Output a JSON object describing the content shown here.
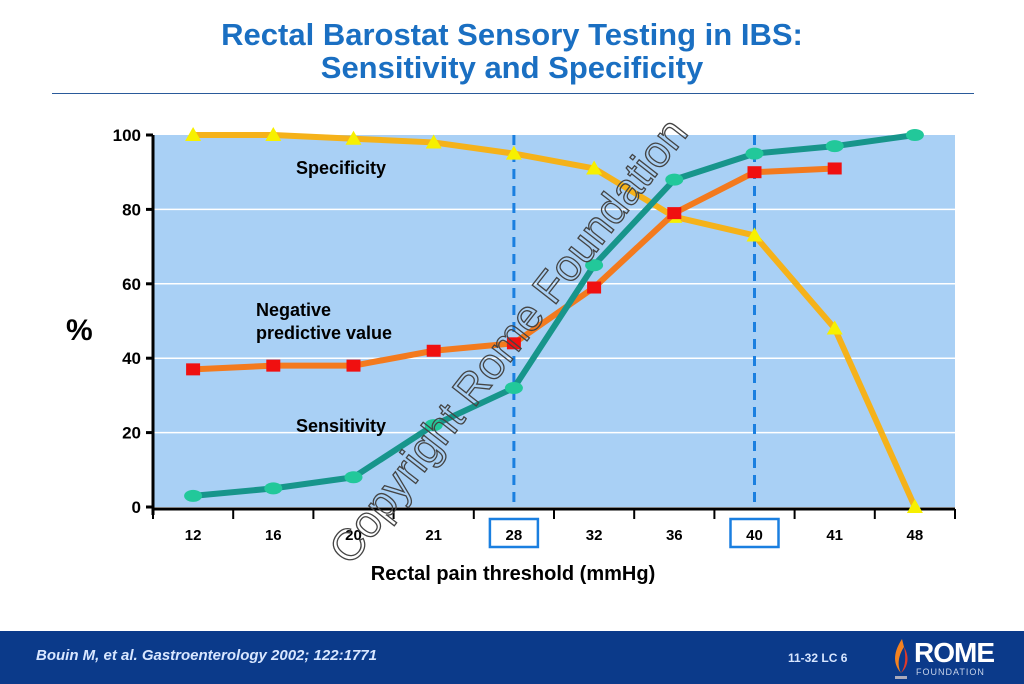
{
  "title_line1": "Rectal Barostat Sensory Testing in IBS:",
  "title_line2": "Sensitivity and Specificity",
  "footer": {
    "citation": "Bouin M, et al. Gastroenterology 2002; 122:1771",
    "slide_code": "11-32  LC 6",
    "logo_text": "ROME",
    "logo_subtext": "FOUNDATION"
  },
  "watermark": "Copyright Rome Foundation",
  "colors": {
    "plot_bg": "#a9d0f5",
    "specificity": "#f5b21a",
    "npv": "#f37a1e",
    "sensitivity": "#17958b",
    "highlight": "#1a7fe0"
  },
  "chart_data": {
    "type": "line",
    "xlabel": "Rectal pain threshold (mmHg)",
    "ylabel": "%",
    "categories": [
      "12",
      "16",
      "20",
      "21",
      "28",
      "32",
      "36",
      "40",
      "41",
      "48"
    ],
    "highlighted_categories": [
      "28",
      "40"
    ],
    "ylim": [
      0,
      100
    ],
    "yticks": [
      0,
      20,
      40,
      60,
      80,
      100
    ],
    "grid": true,
    "series": [
      {
        "name": "Specificity",
        "marker": "triangle",
        "values": [
          100,
          100,
          99,
          98,
          95,
          91,
          78,
          73,
          48,
          0
        ]
      },
      {
        "name": "Negative predictive value",
        "marker": "square",
        "values": [
          37,
          38,
          38,
          42,
          44,
          59,
          79,
          90,
          91,
          null
        ]
      },
      {
        "name": "Sensitivity",
        "marker": "circle",
        "values": [
          3,
          5,
          8,
          22,
          32,
          65,
          88,
          95,
          97,
          100
        ]
      }
    ]
  }
}
